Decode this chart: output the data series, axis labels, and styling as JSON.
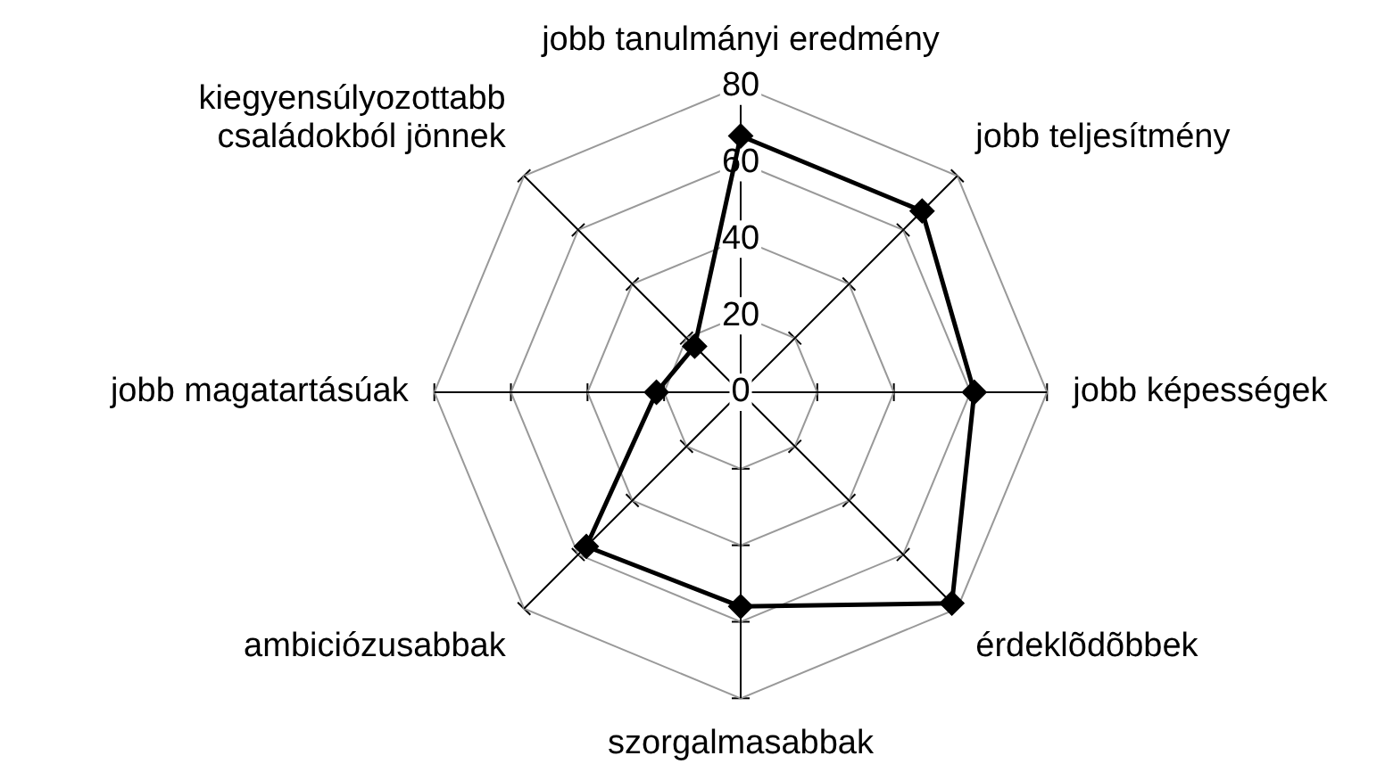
{
  "chart_data": {
    "type": "radar",
    "categories": [
      "jobb tanulmányi eredmény",
      "jobb teljesítmény",
      "jobb képességek",
      "érdeklõdõbbek",
      "szorgalmasabbak",
      "ambiciózusabbak",
      "jobb magatartásúak",
      "kiegyensúlyozottabb családokból jönnek"
    ],
    "series": [
      {
        "color": "#000000",
        "values": [
          67,
          67,
          61,
          78,
          56,
          57,
          22,
          17
        ]
      }
    ],
    "ylim": [
      0,
      80
    ],
    "yticks": [
      0,
      20,
      40,
      60,
      80
    ],
    "marker": "diamond",
    "grid": true
  }
}
